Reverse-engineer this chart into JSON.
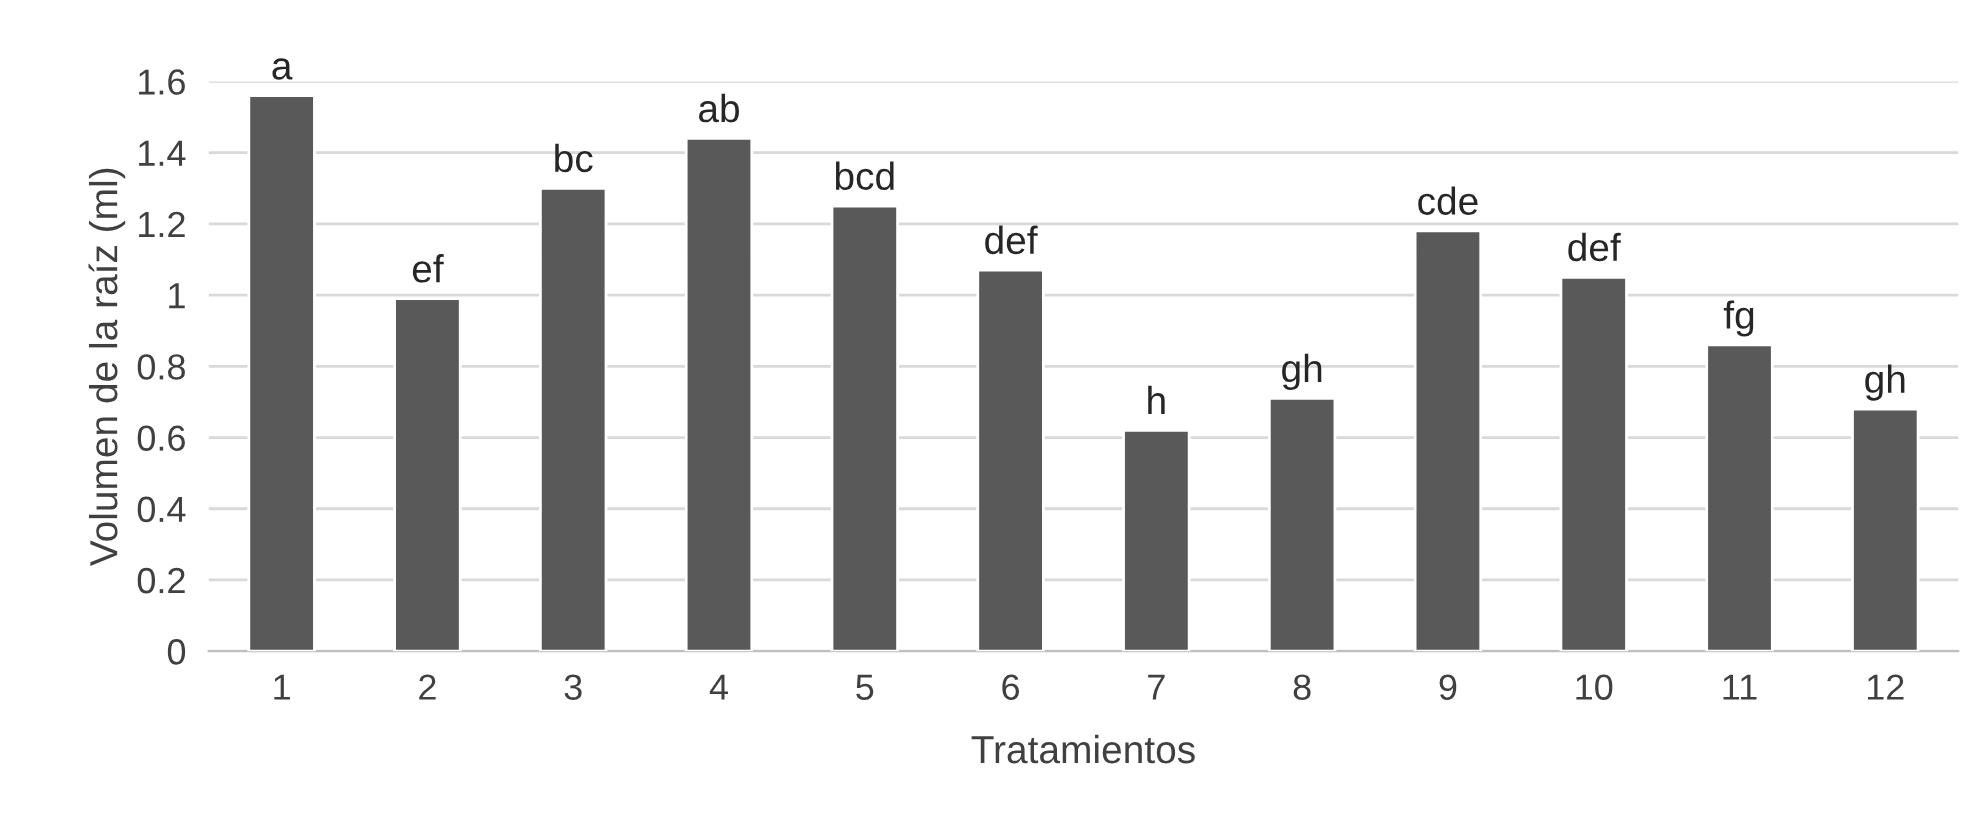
{
  "chart_data": {
    "type": "bar",
    "xlabel": "Tratamientos",
    "ylabel": "Volumen de la raíz (ml)",
    "categories": [
      "1",
      "2",
      "3",
      "4",
      "5",
      "6",
      "7",
      "8",
      "9",
      "10",
      "11",
      "12"
    ],
    "values": [
      1.56,
      0.99,
      1.3,
      1.44,
      1.25,
      1.07,
      0.62,
      0.71,
      1.18,
      1.05,
      0.86,
      0.68
    ],
    "color": "#595959",
    "ylim": [
      0,
      1.6
    ],
    "yticks": [
      0,
      0.2,
      0.4,
      0.6,
      0.8,
      1,
      1.2,
      1.4,
      1.6
    ],
    "grid": "y",
    "annotations": [
      {
        "text": "a",
        "x": "1",
        "y": 1.56
      },
      {
        "text": "ef",
        "x": "2",
        "y": 0.99
      },
      {
        "text": "bc",
        "x": "3",
        "y": 1.3
      },
      {
        "text": "ab",
        "x": "4",
        "y": 1.44
      },
      {
        "text": "bcd",
        "x": "5",
        "y": 1.25
      },
      {
        "text": "def",
        "x": "6",
        "y": 1.07
      },
      {
        "text": "h",
        "x": "7",
        "y": 0.62
      },
      {
        "text": "gh",
        "x": "8",
        "y": 0.71
      },
      {
        "text": "cde",
        "x": "9",
        "y": 1.18
      },
      {
        "text": "def",
        "x": "10",
        "y": 1.05
      },
      {
        "text": "fg",
        "x": "11",
        "y": 0.86
      },
      {
        "text": "gh",
        "x": "12",
        "y": 0.68
      }
    ]
  }
}
